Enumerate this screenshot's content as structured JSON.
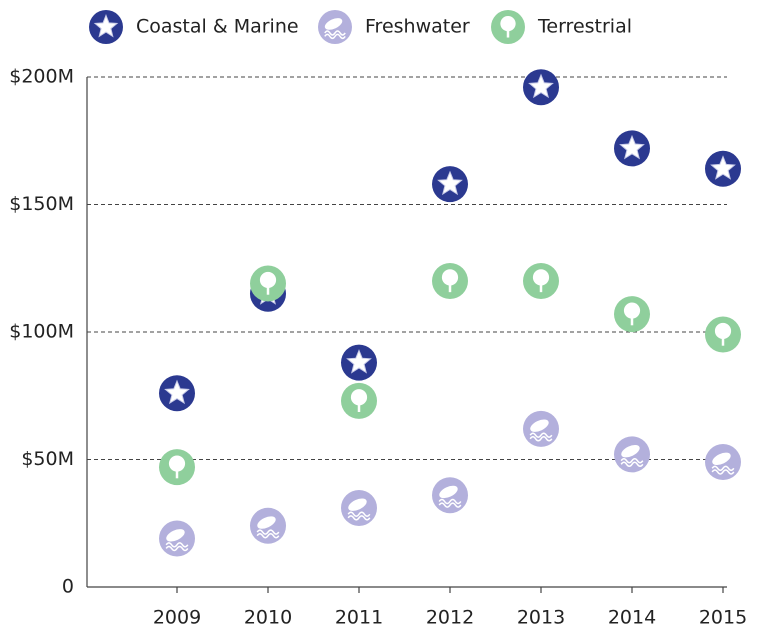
{
  "chart_data": {
    "type": "scatter",
    "categories": [
      "2009",
      "2010",
      "2011",
      "2012",
      "2013",
      "2014",
      "2015"
    ],
    "series": [
      {
        "name": "Coastal & Marine",
        "color": "#2b3990",
        "icon": "star",
        "values": [
          76000000,
          115000000,
          88000000,
          158000000,
          196000000,
          172000000,
          164000000
        ]
      },
      {
        "name": "Freshwater",
        "color": "#b3b0dc",
        "icon": "fish",
        "values": [
          19000000,
          24000000,
          31000000,
          36000000,
          62000000,
          52000000,
          49000000
        ]
      },
      {
        "name": "Terrestrial",
        "color": "#8fcf9c",
        "icon": "tree",
        "values": [
          47000000,
          119000000,
          73000000,
          120000000,
          120000000,
          107000000,
          99000000
        ]
      }
    ],
    "ylim": [
      0,
      200000000
    ],
    "yticks": [
      0,
      {
        "value": 50000000,
        "label": "$50M"
      },
      {
        "value": 100000000,
        "label": "$100M"
      },
      {
        "value": 150000000,
        "label": "$150M"
      },
      {
        "value": 200000000,
        "label": "$200M"
      }
    ],
    "grid": true
  }
}
